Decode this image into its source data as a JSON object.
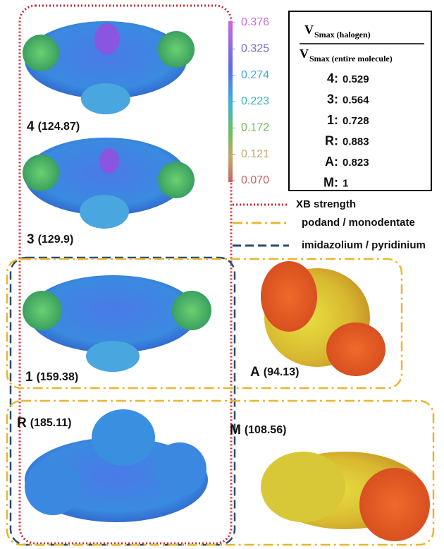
{
  "molecules": [
    {
      "id": "4",
      "value": "(124.87)"
    },
    {
      "id": "3",
      "value": "(129.9)"
    },
    {
      "id": "1",
      "value": "(159.38)"
    },
    {
      "id": "A",
      "value": "(94.13)"
    },
    {
      "id": "R",
      "value": "(185.11)"
    },
    {
      "id": "M",
      "value": "(108.56)"
    }
  ],
  "colorbar": {
    "ticks": [
      0.376,
      0.325,
      0.274,
      0.223,
      0.172,
      0.121,
      {
        "value": 0.07,
        "label": "0.070"
      }
    ],
    "colors": [
      "#c86cd8",
      "#6a6fd8",
      "#4aa6df",
      "#3fb6b0",
      "#6fbf58",
      "#c4a66a",
      "#c4626a"
    ]
  },
  "table": {
    "numerator": {
      "symbol": "V",
      "subscript": "Smax (halogen)"
    },
    "denominator": {
      "symbol": "V",
      "subscript": "Smax (entire molecule)"
    },
    "rows": [
      {
        "label": "4:",
        "value": "0.529"
      },
      {
        "label": "3:",
        "value": "0.564"
      },
      {
        "label": "1:",
        "value": "0.728"
      },
      {
        "label": "R:",
        "value": "0.883"
      },
      {
        "label": "A:",
        "value": "0.823"
      },
      {
        "label": "M:",
        "value": "1"
      }
    ]
  },
  "legend": [
    {
      "label": "XB strength",
      "color": "#d0282e"
    },
    {
      "label": "podand / monodentate",
      "color": "#e8b630"
    },
    {
      "label": "imidazolium / pyridinium",
      "color": "#2c4a6e"
    }
  ]
}
